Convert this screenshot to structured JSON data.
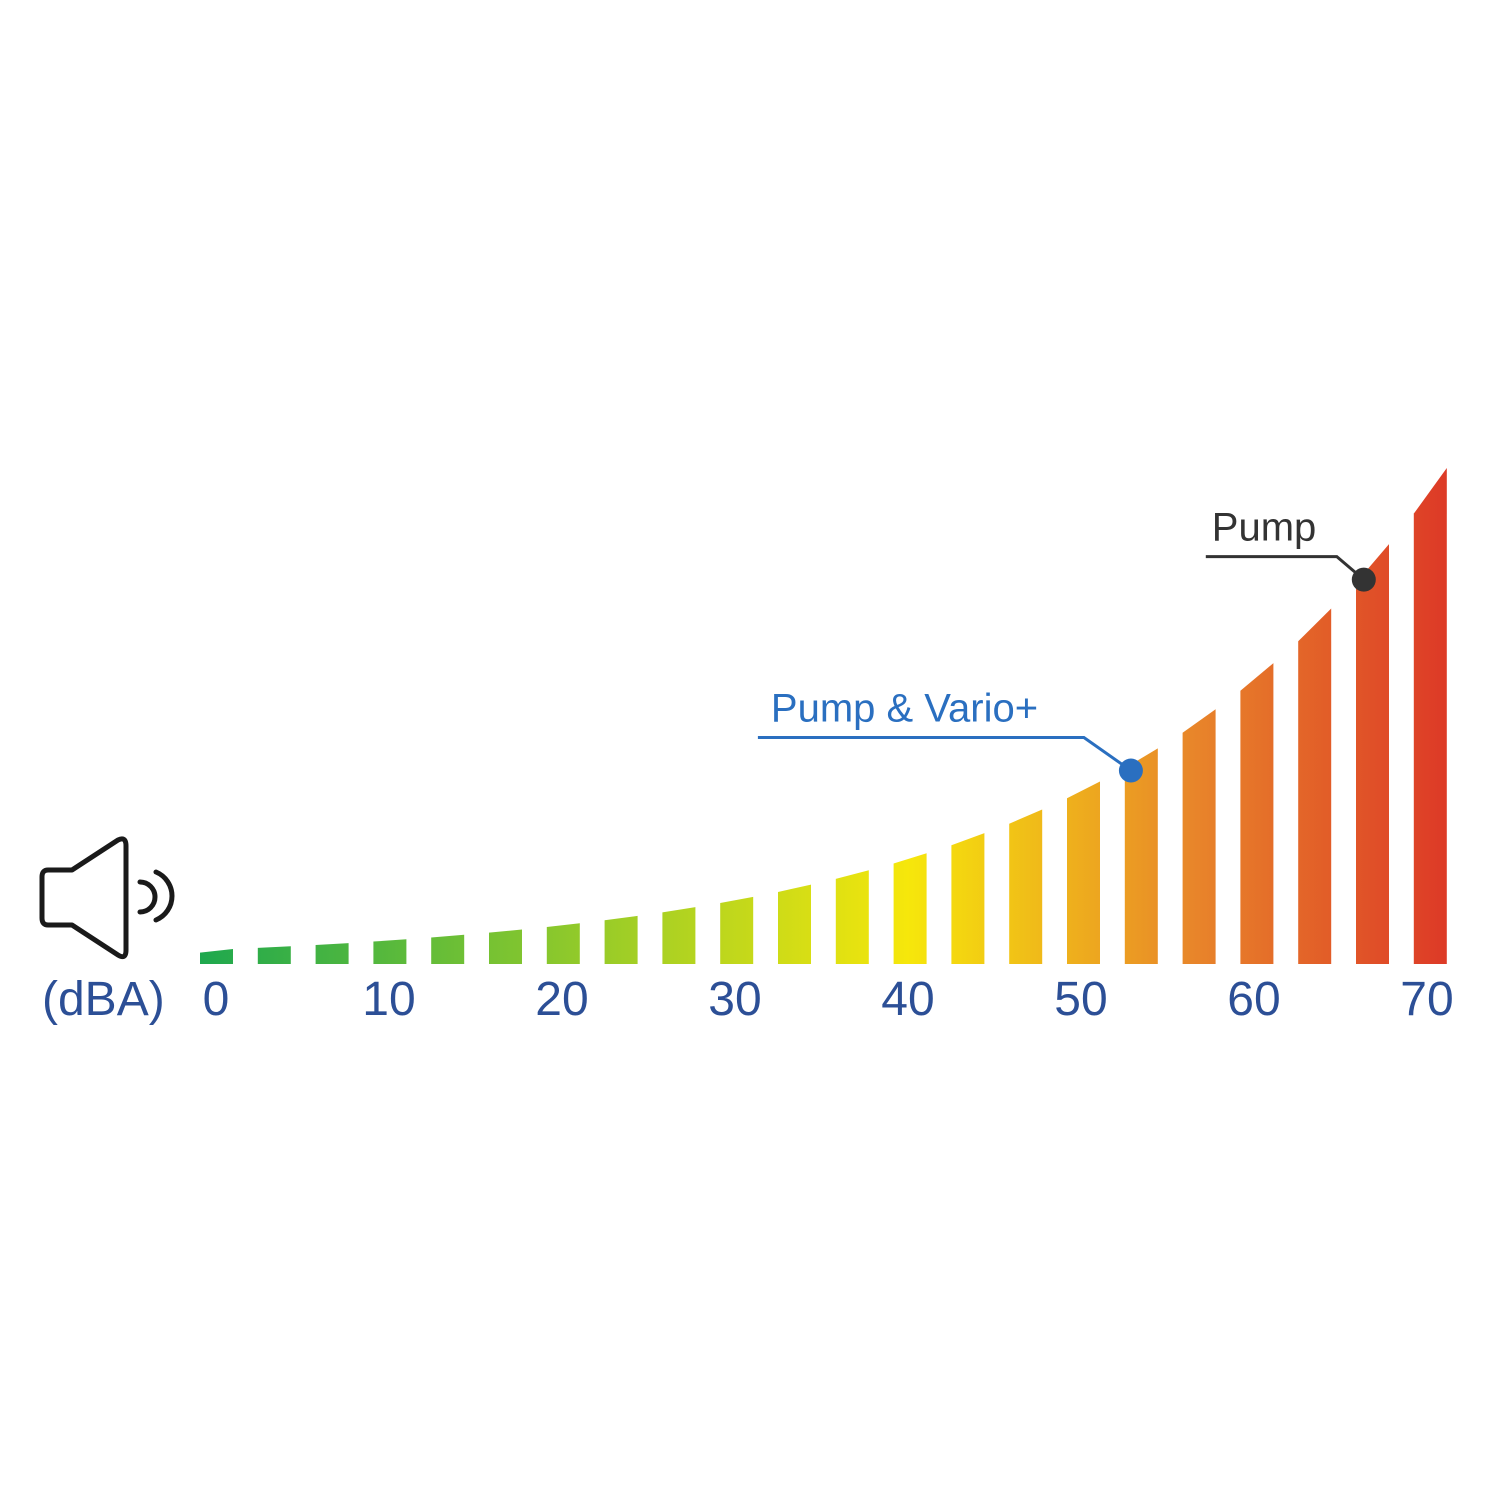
{
  "chart_data": {
    "type": "bar",
    "title": "",
    "unit_label": "(dBA)",
    "xlim": [
      0,
      70
    ],
    "ticks": [
      "0",
      "10",
      "20",
      "30",
      "40",
      "50",
      "60",
      "70"
    ],
    "bar_count": 22,
    "grid": false,
    "colors": {
      "low": "#1ea84e",
      "mid": "#f6e70b",
      "high": "#e8852a",
      "max": "#dd3b27",
      "tick_text": "#2c4f96"
    },
    "annotations": [
      {
        "label": "Pump & Vario+",
        "value_dba": 53,
        "color": "#2a6fc0"
      },
      {
        "label": "Pump",
        "value_dba": 66,
        "color": "#333333"
      }
    ],
    "icon": "speaker-icon"
  }
}
